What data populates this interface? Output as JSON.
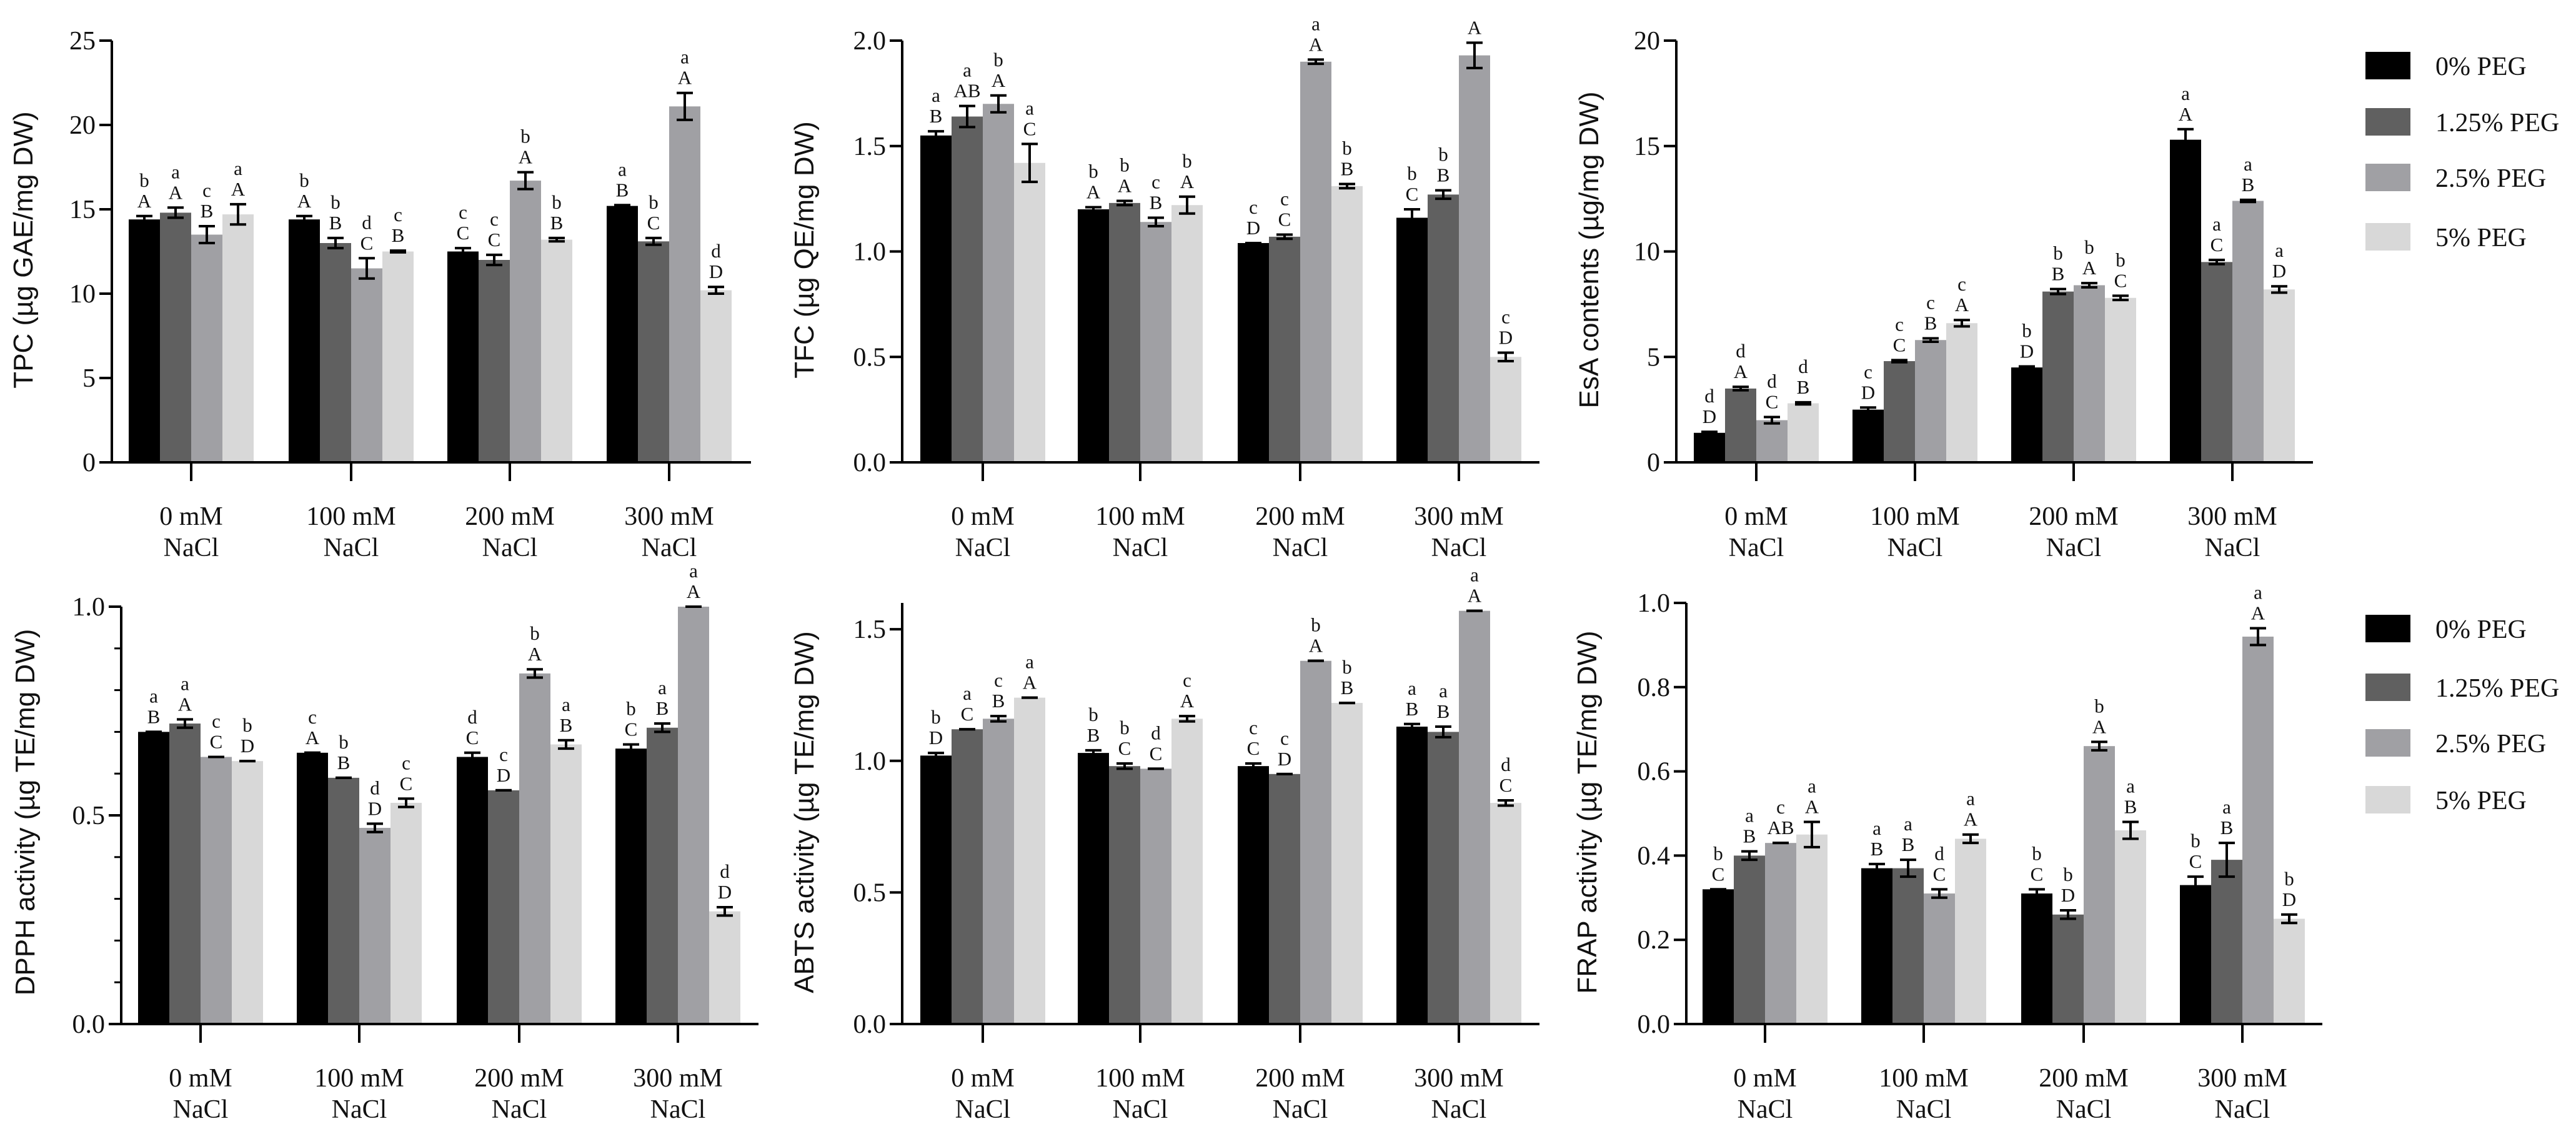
{
  "legend": [
    {
      "name": "0% PEG",
      "color": "#000000"
    },
    {
      "name": "1.25% PEG",
      "color": "#606060"
    },
    {
      "name": "2.5% PEG",
      "color": "#a0a0a4"
    },
    {
      "name": "5% PEG",
      "color": "#d8d8d8"
    }
  ],
  "chart_data": [
    {
      "type": "bar",
      "ylabel": "TPC (µg GAE/mg DW)",
      "categories": [
        [
          "0 mM",
          "NaCl"
        ],
        [
          "100 mM",
          "NaCl"
        ],
        [
          "200 mM",
          "NaCl"
        ],
        [
          "300 mM",
          "NaCl"
        ]
      ],
      "ylim": [
        0,
        25
      ],
      "yticks": [
        "0",
        "5",
        "10",
        "15",
        "20",
        "25"
      ],
      "series": [
        {
          "name": "0% PEG",
          "values": [
            14.4,
            14.4,
            12.5,
            15.2
          ],
          "errors": [
            0.2,
            0.2,
            0.2,
            0.05
          ],
          "letters_lower": [
            "b",
            "b",
            "c",
            "a"
          ],
          "letters_upper": [
            "A",
            "A",
            "C",
            "B"
          ]
        },
        {
          "name": "1.25% PEG",
          "values": [
            14.8,
            13.0,
            12.0,
            13.1
          ],
          "errors": [
            0.3,
            0.3,
            0.3,
            0.2
          ],
          "letters_lower": [
            "a",
            "b",
            "c",
            "b"
          ],
          "letters_upper": [
            "A",
            "B",
            "C",
            "C"
          ]
        },
        {
          "name": "2.5% PEG",
          "values": [
            13.5,
            11.5,
            16.7,
            21.1
          ],
          "errors": [
            0.5,
            0.6,
            0.5,
            0.8
          ],
          "letters_lower": [
            "c",
            "d",
            "b",
            "a"
          ],
          "letters_upper": [
            "B",
            "C",
            "A",
            "A"
          ]
        },
        {
          "name": "5% PEG",
          "values": [
            14.7,
            12.5,
            13.2,
            10.2
          ],
          "errors": [
            0.6,
            0.05,
            0.1,
            0.2
          ],
          "letters_lower": [
            "a",
            "c",
            "b",
            "d"
          ],
          "letters_upper": [
            "A",
            "B",
            "B",
            "D"
          ]
        }
      ]
    },
    {
      "type": "bar",
      "ylabel": "TFC (µg QE/mg DW)",
      "categories": [
        [
          "0 mM",
          "NaCl"
        ],
        [
          "100 mM",
          "NaCl"
        ],
        [
          "200 mM",
          "NaCl"
        ],
        [
          "300 mM",
          "NaCl"
        ]
      ],
      "ylim": [
        0,
        2.0
      ],
      "yticks": [
        "0.0",
        "0.5",
        "1.0",
        "1.5",
        "2.0"
      ],
      "series": [
        {
          "name": "0% PEG",
          "values": [
            1.55,
            1.2,
            1.04,
            1.16
          ],
          "errors": [
            0.02,
            0.01,
            0.0,
            0.04
          ],
          "letters_lower": [
            "a",
            "b",
            "c",
            "b"
          ],
          "letters_upper": [
            "B",
            "A",
            "D",
            "C"
          ]
        },
        {
          "name": "1.25% PEG",
          "values": [
            1.64,
            1.23,
            1.07,
            1.27
          ],
          "errors": [
            0.05,
            0.01,
            0.01,
            0.02
          ],
          "letters_lower": [
            "a",
            "b",
            "c",
            "b"
          ],
          "letters_upper": [
            "AB",
            "A",
            "C",
            "B"
          ]
        },
        {
          "name": "2.5% PEG",
          "values": [
            1.7,
            1.14,
            1.9,
            1.93
          ],
          "errors": [
            0.04,
            0.02,
            0.01,
            0.06
          ],
          "letters_lower": [
            "b",
            "c",
            "a",
            ""
          ],
          "letters_upper": [
            "A",
            "B",
            "A",
            "A"
          ]
        },
        {
          "name": "5% PEG",
          "values": [
            1.42,
            1.22,
            1.31,
            0.5
          ],
          "errors": [
            0.09,
            0.04,
            0.01,
            0.02
          ],
          "letters_lower": [
            "a",
            "b",
            "b",
            "c"
          ],
          "letters_upper": [
            "C",
            "A",
            "B",
            "D"
          ]
        }
      ]
    },
    {
      "type": "bar",
      "ylabel": "EsA contents (µg/mg  DW)",
      "categories": [
        [
          "0 mM",
          "NaCl"
        ],
        [
          "100 mM",
          "NaCl"
        ],
        [
          "200 mM",
          "NaCl"
        ],
        [
          "300 mM",
          "NaCl"
        ]
      ],
      "ylim": [
        0,
        20
      ],
      "yticks": [
        "0",
        "5",
        "10",
        "15",
        "20"
      ],
      "series": [
        {
          "name": "0% PEG",
          "values": [
            1.4,
            2.5,
            4.5,
            15.3
          ],
          "errors": [
            0.05,
            0.1,
            0.05,
            0.5
          ],
          "letters_lower": [
            "d",
            "c",
            "b",
            "a"
          ],
          "letters_upper": [
            "D",
            "D",
            "D",
            "A"
          ]
        },
        {
          "name": "1.25% PEG",
          "values": [
            3.5,
            4.8,
            8.1,
            9.5
          ],
          "errors": [
            0.08,
            0.05,
            0.12,
            0.1
          ],
          "letters_lower": [
            "d",
            "c",
            "b",
            "a"
          ],
          "letters_upper": [
            "A",
            "C",
            "B",
            "C"
          ]
        },
        {
          "name": "2.5% PEG",
          "values": [
            2.0,
            5.8,
            8.4,
            12.4
          ],
          "errors": [
            0.15,
            0.08,
            0.1,
            0.05
          ],
          "letters_lower": [
            "d",
            "c",
            "b",
            "a"
          ],
          "letters_upper": [
            "C",
            "B",
            "A",
            "B"
          ]
        },
        {
          "name": "5% PEG",
          "values": [
            2.8,
            6.6,
            7.8,
            8.2
          ],
          "errors": [
            0.05,
            0.15,
            0.1,
            0.15
          ],
          "letters_lower": [
            "d",
            "c",
            "b",
            "a"
          ],
          "letters_upper": [
            "B",
            "A",
            "C",
            "D"
          ]
        }
      ]
    },
    {
      "type": "bar",
      "ylabel": "DPPH activity (µg TE/mg DW)",
      "categories": [
        [
          "0 mM",
          "NaCl"
        ],
        [
          "100 mM",
          "NaCl"
        ],
        [
          "200 mM",
          "NaCl"
        ],
        [
          "300 mM",
          "NaCl"
        ]
      ],
      "ylim": [
        0,
        1.0
      ],
      "yticks": [
        "0.0",
        "0.5",
        "1.0"
      ],
      "minor_tick_step": 0.1,
      "series": [
        {
          "name": "0% PEG",
          "values": [
            0.7,
            0.65,
            0.64,
            0.66
          ],
          "errors": [
            0.0,
            0.0,
            0.01,
            0.01
          ],
          "letters_lower": [
            "a",
            "c",
            "d",
            "b"
          ],
          "letters_upper": [
            "B",
            "A",
            "C",
            "C"
          ]
        },
        {
          "name": "1.25% PEG",
          "values": [
            0.72,
            0.59,
            0.56,
            0.71
          ],
          "errors": [
            0.01,
            0.0,
            0.0,
            0.01
          ],
          "letters_lower": [
            "a",
            "b",
            "c",
            "a"
          ],
          "letters_upper": [
            "A",
            "B",
            "D",
            "B"
          ]
        },
        {
          "name": "2.5% PEG",
          "values": [
            0.64,
            0.47,
            0.84,
            1.0
          ],
          "errors": [
            0.0,
            0.01,
            0.01,
            0.0
          ],
          "letters_lower": [
            "c",
            "d",
            "b",
            "a"
          ],
          "letters_upper": [
            "C",
            "D",
            "A",
            "A"
          ]
        },
        {
          "name": "5% PEG",
          "values": [
            0.63,
            0.53,
            0.67,
            0.27
          ],
          "errors": [
            0.0,
            0.01,
            0.01,
            0.01
          ],
          "letters_lower": [
            "b",
            "c",
            "a",
            "d"
          ],
          "letters_upper": [
            "D",
            "C",
            "B",
            "D"
          ]
        }
      ]
    },
    {
      "type": "bar",
      "ylabel": "ABTS activity  (µg TE/mg DW)",
      "categories": [
        [
          "0 mM",
          "NaCl"
        ],
        [
          "100 mM",
          "NaCl"
        ],
        [
          "200 mM",
          "NaCl"
        ],
        [
          "300 mM",
          "NaCl"
        ]
      ],
      "ylim": [
        0,
        1.6
      ],
      "yticks": [
        "0.0",
        "0.5",
        "1.0",
        "1.5"
      ],
      "series": [
        {
          "name": "0% PEG",
          "values": [
            1.02,
            1.03,
            0.98,
            1.13
          ],
          "errors": [
            0.01,
            0.01,
            0.01,
            0.01
          ],
          "letters_lower": [
            "b",
            "b",
            "c",
            "a"
          ],
          "letters_upper": [
            "D",
            "B",
            "C",
            "B"
          ]
        },
        {
          "name": "1.25% PEG",
          "values": [
            1.12,
            0.98,
            0.95,
            1.11
          ],
          "errors": [
            0.0,
            0.01,
            0.0,
            0.02
          ],
          "letters_lower": [
            "a",
            "b",
            "c",
            "a"
          ],
          "letters_upper": [
            "C",
            "C",
            "D",
            "B"
          ]
        },
        {
          "name": "2.5% PEG",
          "values": [
            1.16,
            0.97,
            1.38,
            1.57
          ],
          "errors": [
            0.01,
            0.0,
            0.0,
            0.0
          ],
          "letters_lower": [
            "c",
            "d",
            "b",
            "a"
          ],
          "letters_upper": [
            "B",
            "C",
            "A",
            "A"
          ]
        },
        {
          "name": "5% PEG",
          "values": [
            1.24,
            1.16,
            1.22,
            0.84
          ],
          "errors": [
            0.0,
            0.01,
            0.0,
            0.01
          ],
          "letters_lower": [
            "a",
            "c",
            "b",
            "d"
          ],
          "letters_upper": [
            "A",
            "A",
            "B",
            "C"
          ]
        }
      ]
    },
    {
      "type": "bar",
      "ylabel": "FRAP activity (µg TE/mg DW)",
      "categories": [
        [
          "0 mM",
          "NaCl"
        ],
        [
          "100 mM",
          "NaCl"
        ],
        [
          "200 mM",
          "NaCl"
        ],
        [
          "300 mM",
          "NaCl"
        ]
      ],
      "ylim": [
        0,
        1.0
      ],
      "yticks": [
        "0.0",
        "0.2",
        "0.4",
        "0.6",
        "0.8",
        "1.0"
      ],
      "series": [
        {
          "name": "0% PEG",
          "values": [
            0.32,
            0.37,
            0.31,
            0.33
          ],
          "errors": [
            0.0,
            0.01,
            0.01,
            0.02
          ],
          "letters_lower": [
            "b",
            "a",
            "b",
            "b"
          ],
          "letters_upper": [
            "C",
            "B",
            "C",
            "C"
          ]
        },
        {
          "name": "1.25% PEG",
          "values": [
            0.4,
            0.37,
            0.26,
            0.39
          ],
          "errors": [
            0.01,
            0.02,
            0.01,
            0.04
          ],
          "letters_lower": [
            "a",
            "a",
            "b",
            "a"
          ],
          "letters_upper": [
            "B",
            "B",
            "D",
            "B"
          ]
        },
        {
          "name": "2.5% PEG",
          "values": [
            0.43,
            0.31,
            0.66,
            0.92
          ],
          "errors": [
            0.0,
            0.01,
            0.01,
            0.02
          ],
          "letters_lower": [
            "c",
            "d",
            "b",
            "a"
          ],
          "letters_upper": [
            "AB",
            "C",
            "A",
            "A"
          ]
        },
        {
          "name": "5% PEG",
          "values": [
            0.45,
            0.44,
            0.46,
            0.25
          ],
          "errors": [
            0.03,
            0.01,
            0.02,
            0.01
          ],
          "letters_lower": [
            "a",
            "a",
            "a",
            "b"
          ],
          "letters_upper": [
            "A",
            "A",
            "B",
            "D"
          ]
        }
      ]
    }
  ]
}
